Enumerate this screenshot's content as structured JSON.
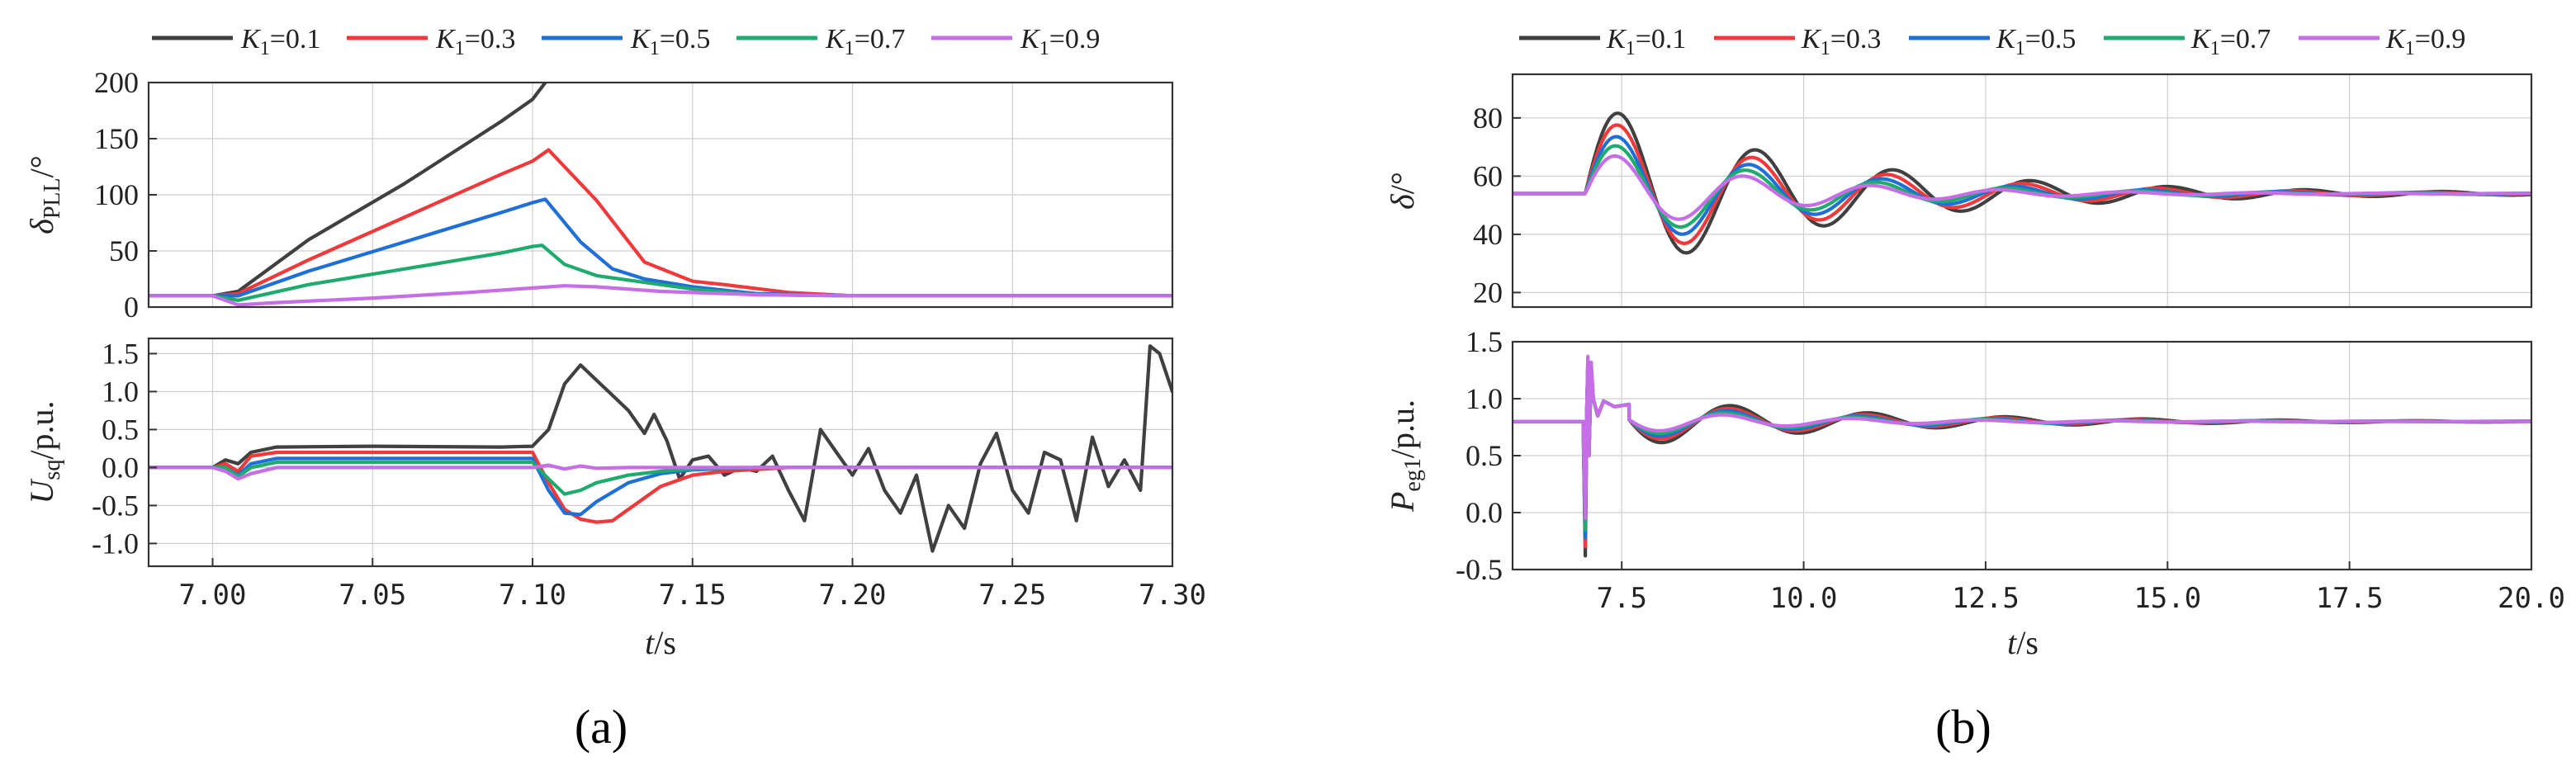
{
  "chart_data": [
    {
      "id": "a_top",
      "type": "line",
      "xlim": [
        6.98,
        7.3
      ],
      "ylim": [
        0,
        200
      ],
      "yticks": [
        "0",
        "50",
        "100",
        "150",
        "200"
      ],
      "ytick_values": [
        0,
        50,
        100,
        150,
        200
      ],
      "ylabel": {
        "main": "δ",
        "sub": "PLL",
        "unit": "/°"
      },
      "xticks_shown": false,
      "series": [
        {
          "name": "K1=0.1",
          "x": [
            6.98,
            7.0,
            7.008,
            7.03,
            7.06,
            7.09,
            7.1,
            7.104
          ],
          "y": [
            10,
            10,
            14,
            60,
            110,
            165,
            185,
            200
          ]
        },
        {
          "name": "K1=0.3",
          "x": [
            6.98,
            7.0,
            7.008,
            7.03,
            7.06,
            7.09,
            7.1,
            7.105,
            7.12,
            7.135,
            7.15,
            7.16,
            7.18,
            7.2,
            7.3
          ],
          "y": [
            10,
            10,
            12,
            42,
            80,
            118,
            130,
            140,
            95,
            40,
            23,
            20,
            13,
            10,
            10
          ]
        },
        {
          "name": "K1=0.5",
          "x": [
            6.98,
            7.0,
            7.008,
            7.03,
            7.06,
            7.09,
            7.1,
            7.104,
            7.115,
            7.125,
            7.135,
            7.15,
            7.17,
            7.2,
            7.3
          ],
          "y": [
            10,
            10,
            10,
            32,
            58,
            84,
            93,
            96,
            58,
            34,
            25,
            18,
            12,
            10,
            10
          ]
        },
        {
          "name": "K1=0.7",
          "x": [
            6.98,
            7.0,
            7.008,
            7.03,
            7.06,
            7.09,
            7.1,
            7.103,
            7.11,
            7.12,
            7.135,
            7.15,
            7.17,
            7.2,
            7.3
          ],
          "y": [
            10,
            10,
            6,
            20,
            34,
            48,
            54,
            55,
            38,
            28,
            22,
            16,
            11,
            10,
            10
          ]
        },
        {
          "name": "K1=0.9",
          "x": [
            6.98,
            7.0,
            7.008,
            7.02,
            7.05,
            7.08,
            7.1,
            7.11,
            7.12,
            7.14,
            7.17,
            7.2,
            7.3
          ],
          "y": [
            10,
            10,
            2,
            4,
            8,
            13,
            17,
            19,
            18,
            14,
            11,
            10,
            10
          ]
        }
      ]
    },
    {
      "id": "a_bottom",
      "type": "line",
      "xlim": [
        6.98,
        7.3
      ],
      "ylim": [
        -1.3,
        1.7
      ],
      "yticks": [
        "1.5",
        "1.0",
        "0.5",
        "0.0",
        "-0.5",
        "-1.0"
      ],
      "ytick_values": [
        1.5,
        1.0,
        0.5,
        0.0,
        -0.5,
        -1.0
      ],
      "ylabel": {
        "main": "U",
        "sub": "sq",
        "unit": "/p.u."
      },
      "xticks": [
        "7.00",
        "7.05",
        "7.10",
        "7.15",
        "7.20",
        "7.25",
        "7.30"
      ],
      "xtick_values": [
        7.0,
        7.05,
        7.1,
        7.15,
        7.2,
        7.25,
        7.3
      ],
      "xlabel": {
        "main": "t",
        "unit": "/s"
      },
      "series": [
        {
          "name": "K1=0.1",
          "x": [
            6.98,
            7.0,
            7.004,
            7.008,
            7.012,
            7.02,
            7.05,
            7.09,
            7.1,
            7.105,
            7.11,
            7.115,
            7.12,
            7.125,
            7.13,
            7.135,
            7.138,
            7.142,
            7.146,
            7.15,
            7.155,
            7.16,
            7.165,
            7.17,
            7.175,
            7.18,
            7.185,
            7.19,
            7.195,
            7.2,
            7.205,
            7.21,
            7.215,
            7.22,
            7.225,
            7.23,
            7.235,
            7.24,
            7.245,
            7.25,
            7.255,
            7.26,
            7.265,
            7.27,
            7.275,
            7.28,
            7.285,
            7.29,
            7.293,
            7.296,
            7.3
          ],
          "y": [
            0.0,
            0.0,
            0.1,
            0.05,
            0.2,
            0.27,
            0.28,
            0.27,
            0.28,
            0.5,
            1.1,
            1.35,
            1.15,
            0.95,
            0.75,
            0.45,
            0.7,
            0.35,
            -0.15,
            0.1,
            0.15,
            -0.1,
            0.0,
            -0.05,
            0.15,
            -0.3,
            -0.7,
            0.5,
            0.2,
            -0.1,
            0.25,
            -0.3,
            -0.6,
            -0.1,
            -1.1,
            -0.5,
            -0.8,
            0.05,
            0.45,
            -0.3,
            -0.6,
            0.2,
            0.1,
            -0.7,
            0.4,
            -0.25,
            0.1,
            -0.3,
            1.6,
            1.5,
            1.0
          ]
        },
        {
          "name": "K1=0.3",
          "x": [
            6.98,
            7.0,
            7.004,
            7.008,
            7.012,
            7.02,
            7.05,
            7.09,
            7.1,
            7.105,
            7.11,
            7.115,
            7.12,
            7.125,
            7.13,
            7.14,
            7.15,
            7.16,
            7.18,
            7.2,
            7.3
          ],
          "y": [
            0.0,
            0.0,
            0.05,
            -0.05,
            0.15,
            0.2,
            0.2,
            0.2,
            0.2,
            -0.2,
            -0.55,
            -0.68,
            -0.72,
            -0.7,
            -0.55,
            -0.25,
            -0.1,
            -0.05,
            0.0,
            0.0,
            0.0
          ]
        },
        {
          "name": "K1=0.5",
          "x": [
            6.98,
            7.0,
            7.004,
            7.008,
            7.012,
            7.02,
            7.05,
            7.09,
            7.1,
            7.105,
            7.11,
            7.115,
            7.12,
            7.13,
            7.14,
            7.15,
            7.17,
            7.2,
            7.3
          ],
          "y": [
            0.0,
            0.0,
            0.0,
            -0.1,
            0.05,
            0.12,
            0.12,
            0.12,
            0.12,
            -0.3,
            -0.6,
            -0.62,
            -0.45,
            -0.2,
            -0.08,
            -0.03,
            0.0,
            0.0,
            0.0
          ]
        },
        {
          "name": "K1=0.7",
          "x": [
            6.98,
            7.0,
            7.004,
            7.008,
            7.012,
            7.02,
            7.05,
            7.09,
            7.1,
            7.105,
            7.11,
            7.115,
            7.12,
            7.13,
            7.14,
            7.15,
            7.17,
            7.2,
            7.3
          ],
          "y": [
            0.0,
            0.0,
            0.0,
            -0.12,
            0.0,
            0.07,
            0.07,
            0.07,
            0.07,
            -0.15,
            -0.35,
            -0.3,
            -0.2,
            -0.1,
            -0.05,
            -0.02,
            0.0,
            0.0,
            0.0
          ]
        },
        {
          "name": "K1=0.9",
          "x": [
            6.98,
            7.0,
            7.004,
            7.008,
            7.012,
            7.02,
            7.05,
            7.09,
            7.1,
            7.105,
            7.11,
            7.115,
            7.12,
            7.13,
            7.15,
            7.2,
            7.3
          ],
          "y": [
            0.0,
            0.0,
            -0.05,
            -0.15,
            -0.08,
            0.0,
            0.0,
            0.0,
            0.0,
            0.03,
            -0.02,
            0.02,
            -0.01,
            0.0,
            0.0,
            0.0,
            0.0
          ]
        }
      ]
    },
    {
      "id": "b_top",
      "type": "line",
      "xlim": [
        6.0,
        20.0
      ],
      "ylim": [
        15,
        95
      ],
      "yticks": [
        "20",
        "40",
        "60",
        "80"
      ],
      "ytick_values": [
        20,
        40,
        60,
        80
      ],
      "ylabel": {
        "main": "δ",
        "sub": "",
        "unit": "/°"
      },
      "xticks_shown": false,
      "series": [
        {
          "name": "K1=0.1",
          "type": "damped",
          "base": 54,
          "amp": 32,
          "t0": 7.0,
          "tau": 3.1,
          "f": 0.53
        },
        {
          "name": "K1=0.3",
          "type": "damped",
          "base": 54,
          "amp": 27.5,
          "t0": 7.0,
          "tau": 2.9,
          "f": 0.54
        },
        {
          "name": "K1=0.5",
          "type": "damped",
          "base": 54,
          "amp": 23,
          "t0": 7.0,
          "tau": 2.7,
          "f": 0.55
        },
        {
          "name": "K1=0.7",
          "type": "damped",
          "base": 54,
          "amp": 19.5,
          "t0": 7.0,
          "tau": 2.5,
          "f": 0.56
        },
        {
          "name": "K1=0.9",
          "type": "damped",
          "base": 54,
          "amp": 15.5,
          "t0": 7.0,
          "tau": 2.3,
          "f": 0.57
        }
      ]
    },
    {
      "id": "b_bottom",
      "type": "line",
      "xlim": [
        6.0,
        20.0
      ],
      "ylim": [
        -0.5,
        1.5
      ],
      "yticks": [
        "1.5",
        "1.0",
        "0.5",
        "0.0",
        "-0.5"
      ],
      "ytick_values": [
        1.5,
        1.0,
        0.5,
        0.0,
        -0.5
      ],
      "ylabel": {
        "main": "P",
        "sub": "eg1",
        "unit": "/p.u."
      },
      "xticks": [
        "7.5",
        "10.0",
        "12.5",
        "15.0",
        "17.5",
        "20.0"
      ],
      "xtick_values": [
        7.5,
        10.0,
        12.5,
        15.0,
        17.5,
        20.0
      ],
      "xlabel": {
        "main": "t",
        "unit": "/s"
      },
      "series": [
        {
          "name": "K1=0.1",
          "type": "damped_spike",
          "base": 0.8,
          "amp": 0.26,
          "t0": 7.05,
          "tau": 3.1,
          "f": 0.53,
          "spike_hi": 1.33,
          "spike_lo": -0.38
        },
        {
          "name": "K1=0.3",
          "type": "damped_spike",
          "base": 0.8,
          "amp": 0.22,
          "t0": 7.05,
          "tau": 2.9,
          "f": 0.54,
          "spike_hi": 1.3,
          "spike_lo": -0.3
        },
        {
          "name": "K1=0.5",
          "type": "damped_spike",
          "base": 0.8,
          "amp": 0.19,
          "t0": 7.05,
          "tau": 2.7,
          "f": 0.55,
          "spike_hi": 1.28,
          "spike_lo": -0.22
        },
        {
          "name": "K1=0.7",
          "type": "damped_spike",
          "base": 0.8,
          "amp": 0.16,
          "t0": 7.05,
          "tau": 2.5,
          "f": 0.56,
          "spike_hi": 1.3,
          "spike_lo": -0.15
        },
        {
          "name": "K1=0.9",
          "type": "damped_spike",
          "base": 0.8,
          "amp": 0.13,
          "t0": 7.05,
          "tau": 2.3,
          "f": 0.57,
          "spike_hi": 1.37,
          "spike_lo": -0.05
        }
      ]
    }
  ],
  "legend": {
    "series": [
      {
        "name": "K",
        "sub": "1",
        "value": "=0.1",
        "color": "#404040"
      },
      {
        "name": "K",
        "sub": "1",
        "value": "=0.3",
        "color": "#f0393b"
      },
      {
        "name": "K",
        "sub": "1",
        "value": "=0.5",
        "color": "#1f6fd6"
      },
      {
        "name": "K",
        "sub": "1",
        "value": "=0.7",
        "color": "#1faa6e"
      },
      {
        "name": "K",
        "sub": "1",
        "value": "=0.9",
        "color": "#c56ee6"
      }
    ]
  },
  "captions": {
    "a": "(a)",
    "b": "(b)"
  }
}
